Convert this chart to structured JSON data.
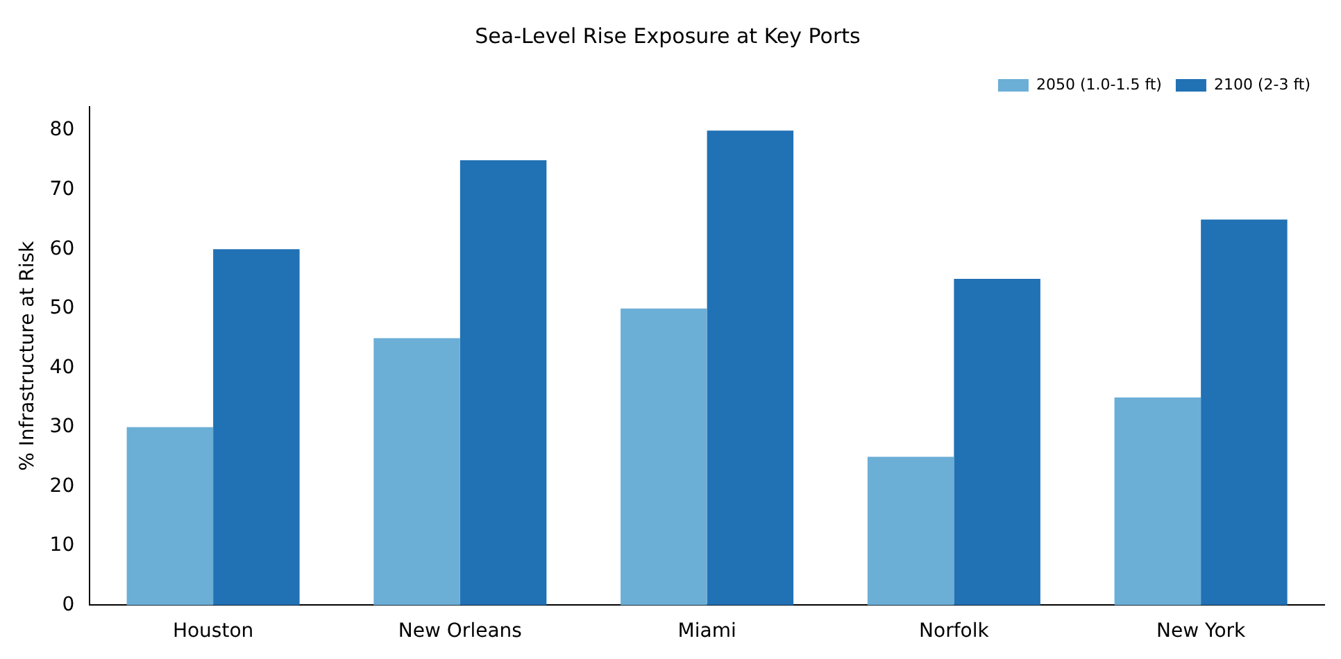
{
  "chart_data": {
    "type": "bar",
    "title": "Sea-Level Rise Exposure at Key Ports",
    "ylabel": "% Infrastructure at Risk",
    "categories": [
      "Houston",
      "New Orleans",
      "Miami",
      "Norfolk",
      "New York"
    ],
    "series": [
      {
        "name": "2050 (1.0-1.5 ft)",
        "color": "#6baed6",
        "values": [
          30,
          45,
          50,
          25,
          35
        ]
      },
      {
        "name": "2100 (2-3 ft)",
        "color": "#2171b5",
        "values": [
          60,
          75,
          80,
          55,
          65
        ]
      }
    ],
    "ylim": [
      0,
      84
    ],
    "yticks": [
      0,
      10,
      20,
      30,
      40,
      50,
      60,
      70,
      80
    ],
    "grid": false,
    "legend": "top right"
  }
}
